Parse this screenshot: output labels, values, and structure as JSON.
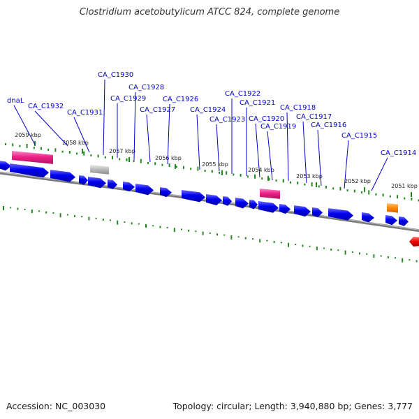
{
  "title": "Clostridium acetobutylicum ATCC 824, complete genome",
  "footer": {
    "accession_label": "Accession:",
    "accession": "NC_003030",
    "topology_label": "Topology:",
    "topology": "circular",
    "length_label": "Length:",
    "length": "3,940,880 bp",
    "genes_label": "Genes:",
    "genes": "3,777"
  },
  "gene_labels": [
    "dnaL",
    "CA_C1932",
    "CA_C1931",
    "CA_C1930",
    "CA_C1929",
    "CA_C1928",
    "CA_C1927",
    "CA_C1926",
    "CA_C1924",
    "CA_C1923",
    "CA_C1922",
    "CA_C1921",
    "CA_C1920",
    "CA_C1919",
    "CA_C1918",
    "CA_C1917",
    "CA_C1916",
    "CA_C1915",
    "CA_C1914"
  ],
  "kbp_ticks": [
    "2059 kbp",
    "2058 kbp",
    "2057 kbp",
    "2056 kbp",
    "2055 kbp",
    "2054 kbp",
    "2053 kbp",
    "2052 kbp",
    "2051 kbp"
  ],
  "colors": {
    "cds": "#0000ee",
    "trna": "#ee2288",
    "pseudo": "#b8b8b8",
    "rrna": "#ff8800",
    "red_feature": "#ee0000",
    "backbone": "#777777",
    "gc_tick": "#228822",
    "label": "#0000cc"
  }
}
